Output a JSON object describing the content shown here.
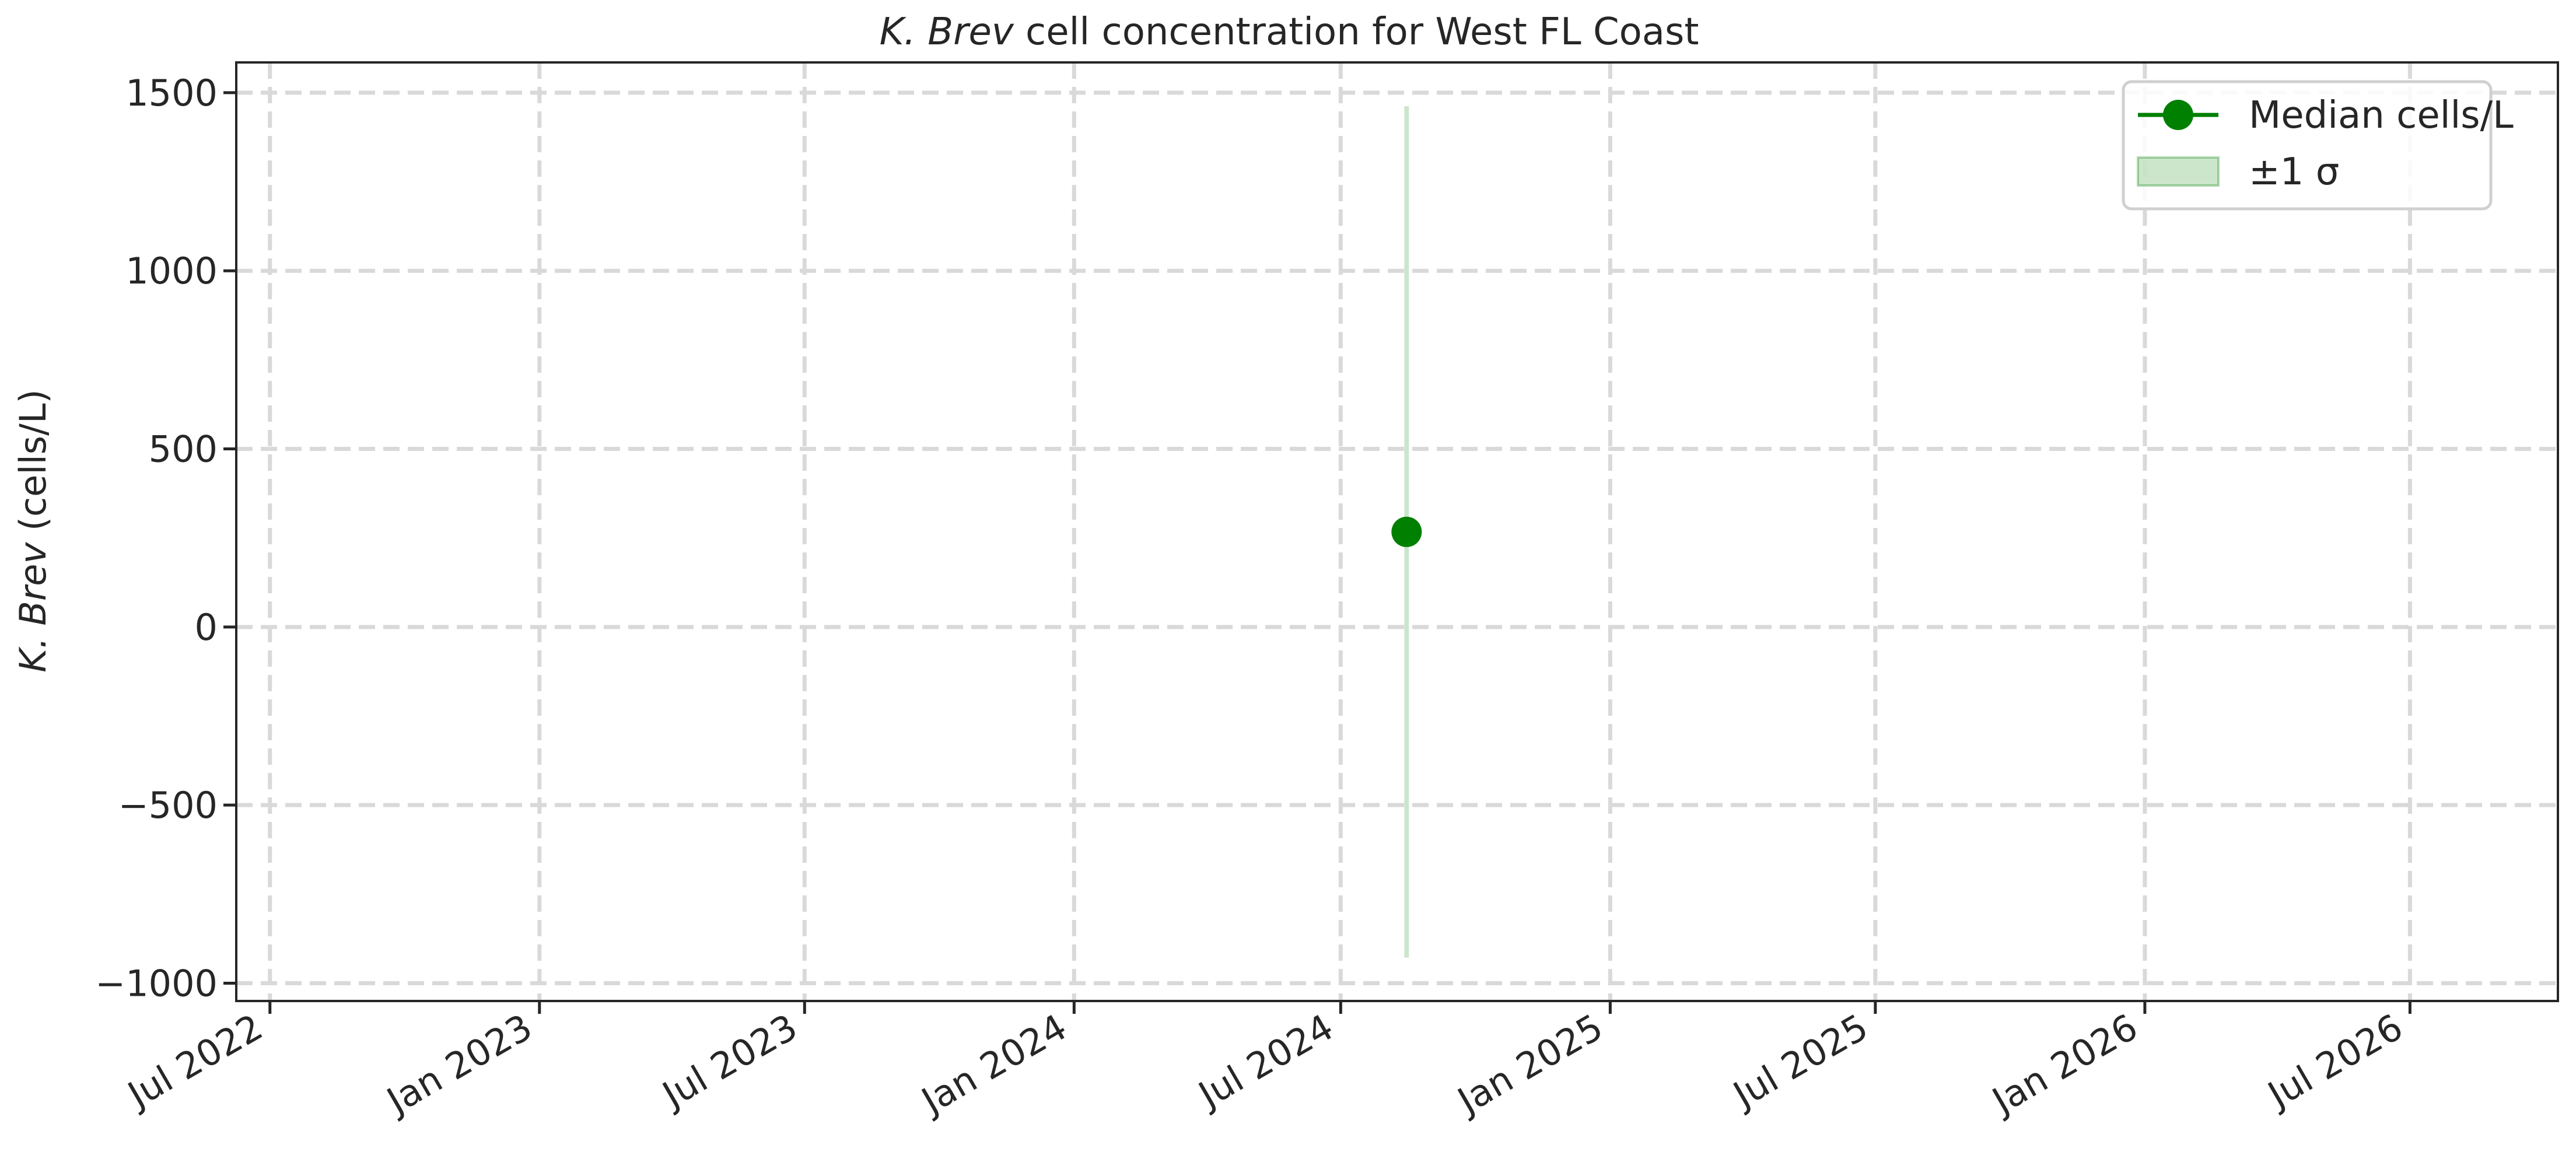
{
  "chart_data": {
    "type": "scatter",
    "title_italic": "K. Brev",
    "title_rest": " cell concentration for West FL Coast",
    "ylabel_italic": "K. Brev",
    "ylabel_rest": " (cells/L)",
    "xlabel": "",
    "x_ticks": [
      "2022-07-01",
      "2023-01-01",
      "2023-07-01",
      "2024-01-01",
      "2024-07-01",
      "2025-01-01",
      "2025-07-01",
      "2026-01-01",
      "2026-07-01"
    ],
    "x_tick_labels": [
      "Jul 2022",
      "Jan 2023",
      "Jul 2023",
      "Jan 2024",
      "Jul 2024",
      "Jan 2025",
      "Jul 2025",
      "Jan 2026",
      "Jul 2026"
    ],
    "xlim": [
      "2022-06-08",
      "2026-10-10"
    ],
    "y_ticks": [
      -1000,
      -500,
      0,
      500,
      1000,
      1500
    ],
    "y_tick_labels": [
      "−1000",
      "−500",
      "0",
      "500",
      "1000",
      "1500"
    ],
    "ylim": [
      -1050,
      1585
    ],
    "grid": true,
    "legend_position": "top-right",
    "series": [
      {
        "name": "Median cells/L",
        "color": "#008000",
        "marker": "circle",
        "points": [
          {
            "x": "2024-08-15",
            "y": 267,
            "sigma_low": -928,
            "sigma_high": 1462
          }
        ]
      }
    ],
    "band": {
      "name": "±1 σ",
      "color": "#008000",
      "opacity": 0.2
    }
  }
}
